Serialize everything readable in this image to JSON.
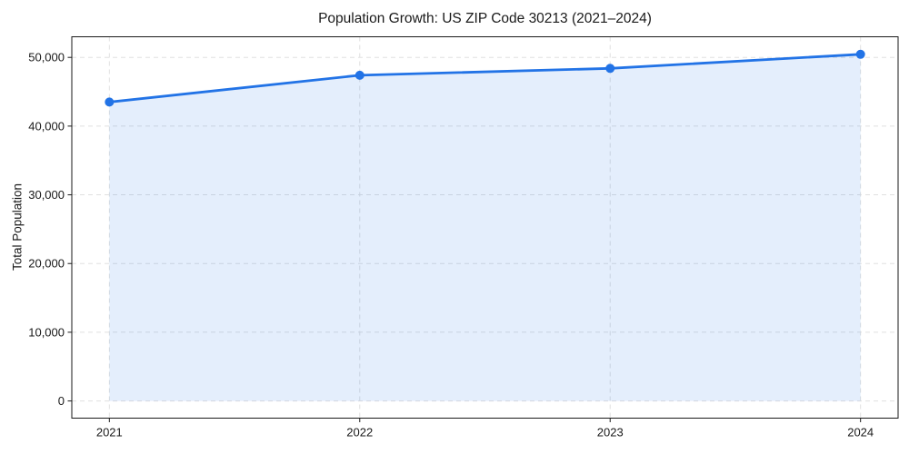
{
  "chart_data": {
    "type": "area",
    "title": "Population Growth: US ZIP Code 30213 (2021–2024)",
    "xlabel": "",
    "ylabel": "Total Population",
    "x": [
      2021,
      2022,
      2023,
      2024
    ],
    "xtick_labels": [
      "2021",
      "2022",
      "2023",
      "2024"
    ],
    "series": [
      {
        "name": "Total Population",
        "values": [
          43500,
          47400,
          48400,
          50450
        ]
      }
    ],
    "yticks": [
      0,
      10000,
      20000,
      30000,
      40000,
      50000
    ],
    "ytick_labels": [
      "0",
      "10,000",
      "20,000",
      "30,000",
      "40,000",
      "50,000"
    ],
    "xlim": [
      2020.85,
      2024.15
    ],
    "ylim": [
      -2500,
      53000
    ],
    "fill_baseline": 0,
    "grid": true,
    "grid_style": "dashed",
    "legend_position": "none",
    "line_color": "#2273e6",
    "fill_opacity": 0.12,
    "marker": "circle",
    "marker_radius": 5,
    "grid_color": "#e0e0e0",
    "spine_color": "#1a1a1a",
    "text_color": "#1a1a1a",
    "plot_background": "#ffffff",
    "figure_background": "#ffffff"
  }
}
